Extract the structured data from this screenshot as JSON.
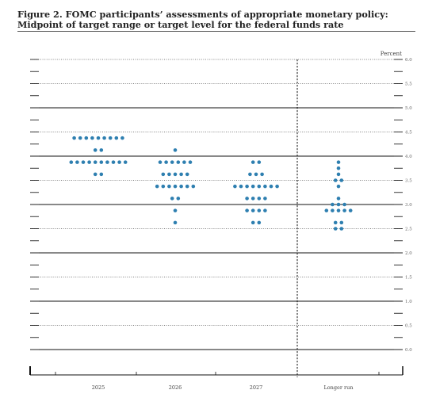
{
  "figure": {
    "title": "Figure 2.  FOMC participants’ assessments of appropriate monetary policy:  Midpoint of target range or target level for the federal funds rate"
  },
  "chart_data": {
    "type": "scatter",
    "title": "Figure 2.  FOMC participants’ assessments of appropriate monetary policy:  Midpoint of target range or target level for the federal funds rate",
    "ylabel": "Percent",
    "ylim": [
      0,
      6
    ],
    "yticks": [
      "0.0",
      "0.5",
      "1.0",
      "1.5",
      "2.0",
      "2.5",
      "3.0",
      "3.5",
      "4.0",
      "4.5",
      "5.0",
      "5.5",
      "6.0"
    ],
    "categories": [
      "2025",
      "2026",
      "2027",
      "Longer run"
    ],
    "dot_color": "#2e7fb0",
    "series": [
      {
        "category": "2025",
        "points": [
          {
            "y": 4.375,
            "count": 9
          },
          {
            "y": 4.125,
            "count": 2
          },
          {
            "y": 3.875,
            "count": 10
          },
          {
            "y": 3.625,
            "count": 2
          }
        ]
      },
      {
        "category": "2026",
        "points": [
          {
            "y": 4.125,
            "count": 1
          },
          {
            "y": 3.875,
            "count": 6
          },
          {
            "y": 3.625,
            "count": 5
          },
          {
            "y": 3.375,
            "count": 7
          },
          {
            "y": 3.125,
            "count": 2
          },
          {
            "y": 2.875,
            "count": 1
          },
          {
            "y": 2.625,
            "count": 1
          }
        ]
      },
      {
        "category": "2027",
        "points": [
          {
            "y": 3.875,
            "count": 2
          },
          {
            "y": 3.625,
            "count": 3
          },
          {
            "y": 3.375,
            "count": 8
          },
          {
            "y": 3.125,
            "count": 4
          },
          {
            "y": 2.875,
            "count": 4
          },
          {
            "y": 2.625,
            "count": 2
          }
        ]
      },
      {
        "category": "Longer run",
        "points": [
          {
            "y": 3.875,
            "count": 1
          },
          {
            "y": 3.75,
            "count": 1
          },
          {
            "y": 3.625,
            "count": 1
          },
          {
            "y": 3.5,
            "count": 2
          },
          {
            "y": 3.375,
            "count": 1
          },
          {
            "y": 3.125,
            "count": 1
          },
          {
            "y": 3.0,
            "count": 3
          },
          {
            "y": 2.875,
            "count": 5
          },
          {
            "y": 2.625,
            "count": 2
          },
          {
            "y": 2.5,
            "count": 2
          }
        ]
      }
    ],
    "grid": {
      "solid_at": [
        0,
        1,
        2,
        3,
        4,
        5
      ],
      "dotted_at": [
        0.5,
        1.5,
        2.5,
        3.5,
        4.5,
        5.5,
        6.0
      ]
    },
    "longer_run_divider": "dashed vertical line"
  }
}
